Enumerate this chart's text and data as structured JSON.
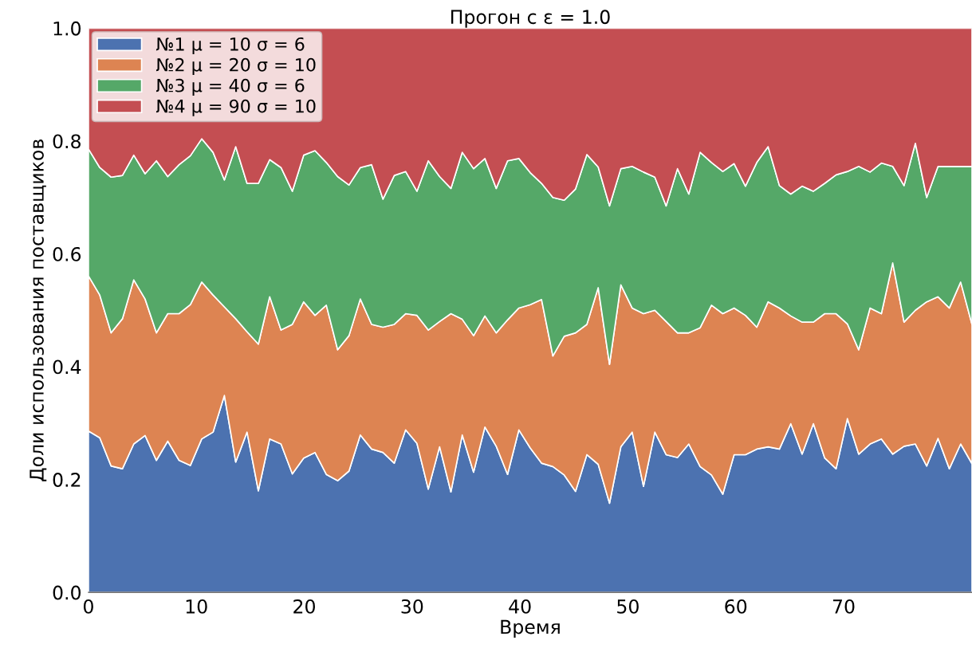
{
  "chart_data": {
    "type": "area",
    "stacked": true,
    "title": "Прогон с ε = 1.0",
    "xlabel": "Время",
    "ylabel": "Доли использования поставщиков",
    "x": [
      0,
      1.05,
      2.1,
      3.15,
      4.2,
      5.25,
      6.3,
      7.35,
      8.4,
      9.45,
      10.5,
      11.55,
      12.6,
      13.65,
      14.7,
      15.75,
      16.8,
      17.85,
      18.9,
      19.95,
      21,
      22.05,
      23.1,
      24.15,
      25.2,
      26.25,
      27.3,
      28.35,
      29.4,
      30.45,
      31.5,
      32.55,
      33.6,
      34.65,
      35.7,
      36.75,
      37.8,
      38.85,
      39.9,
      40.95,
      42,
      43.05,
      44.1,
      45.15,
      46.2,
      47.25,
      48.3,
      49.35,
      50.4,
      51.45,
      52.5,
      53.55,
      54.6,
      55.65,
      56.7,
      57.75,
      58.8,
      59.85,
      60.9,
      61.95,
      63,
      64.05,
      65.1,
      66.15,
      67.2,
      68.25,
      69.3,
      70.35,
      71.4,
      72.45,
      73.5,
      74.55,
      75.6,
      76.65,
      77.7,
      78.75,
      79.8,
      80.85,
      81.9
    ],
    "series": [
      {
        "name": "№1 μ = 10 σ = 6",
        "color": "#4c72b0",
        "values": [
          0.286,
          0.274,
          0.224,
          0.219,
          0.263,
          0.278,
          0.234,
          0.268,
          0.234,
          0.225,
          0.272,
          0.284,
          0.349,
          0.231,
          0.284,
          0.18,
          0.272,
          0.263,
          0.21,
          0.238,
          0.248,
          0.209,
          0.198,
          0.215,
          0.279,
          0.254,
          0.248,
          0.229,
          0.288,
          0.264,
          0.183,
          0.258,
          0.178,
          0.279,
          0.213,
          0.293,
          0.259,
          0.209,
          0.288,
          0.256,
          0.229,
          0.223,
          0.208,
          0.179,
          0.244,
          0.227,
          0.158,
          0.258,
          0.284,
          0.188,
          0.284,
          0.244,
          0.239,
          0.263,
          0.223,
          0.208,
          0.174,
          0.244,
          0.244,
          0.254,
          0.258,
          0.254,
          0.299,
          0.245,
          0.299,
          0.238,
          0.219,
          0.308,
          0.245,
          0.263,
          0.272,
          0.245,
          0.259,
          0.263,
          0.224,
          0.273,
          0.219,
          0.263,
          0.228
        ]
      },
      {
        "name": "№2 μ = 20 σ = 10",
        "color": "#dd8452",
        "values": [
          0.275,
          0.253,
          0.236,
          0.266,
          0.291,
          0.242,
          0.226,
          0.226,
          0.26,
          0.285,
          0.278,
          0.243,
          0.157,
          0.254,
          0.178,
          0.26,
          0.252,
          0.202,
          0.265,
          0.277,
          0.243,
          0.3,
          0.232,
          0.24,
          0.241,
          0.221,
          0.222,
          0.246,
          0.206,
          0.227,
          0.282,
          0.222,
          0.316,
          0.205,
          0.242,
          0.197,
          0.201,
          0.274,
          0.216,
          0.254,
          0.29,
          0.196,
          0.246,
          0.281,
          0.231,
          0.313,
          0.246,
          0.287,
          0.22,
          0.306,
          0.216,
          0.236,
          0.221,
          0.197,
          0.246,
          0.301,
          0.32,
          0.26,
          0.247,
          0.216,
          0.257,
          0.25,
          0.191,
          0.234,
          0.18,
          0.256,
          0.275,
          0.168,
          0.185,
          0.241,
          0.222,
          0.339,
          0.22,
          0.237,
          0.291,
          0.251,
          0.285,
          0.287,
          0.247
        ]
      },
      {
        "name": "№3 μ = 40 σ = 6",
        "color": "#55a868",
        "values": [
          0.225,
          0.226,
          0.276,
          0.254,
          0.221,
          0.222,
          0.305,
          0.243,
          0.264,
          0.264,
          0.254,
          0.253,
          0.225,
          0.305,
          0.263,
          0.285,
          0.243,
          0.288,
          0.236,
          0.26,
          0.292,
          0.253,
          0.307,
          0.267,
          0.233,
          0.283,
          0.227,
          0.264,
          0.252,
          0.22,
          0.3,
          0.257,
          0.222,
          0.296,
          0.296,
          0.279,
          0.256,
          0.282,
          0.265,
          0.234,
          0.206,
          0.281,
          0.241,
          0.255,
          0.301,
          0.214,
          0.281,
          0.206,
          0.251,
          0.251,
          0.236,
          0.205,
          0.291,
          0.246,
          0.311,
          0.253,
          0.252,
          0.256,
          0.229,
          0.292,
          0.275,
          0.217,
          0.216,
          0.241,
          0.232,
          0.231,
          0.246,
          0.27,
          0.325,
          0.241,
          0.267,
          0.171,
          0.242,
          0.296,
          0.185,
          0.231,
          0.251,
          0.205,
          0.28
        ]
      },
      {
        "name": "№4 μ = 90 σ = 10",
        "color": "#c44e52",
        "values": [
          0.214,
          0.247,
          0.264,
          0.261,
          0.225,
          0.258,
          0.235,
          0.263,
          0.242,
          0.226,
          0.196,
          0.22,
          0.269,
          0.21,
          0.275,
          0.275,
          0.233,
          0.247,
          0.289,
          0.225,
          0.217,
          0.238,
          0.263,
          0.278,
          0.247,
          0.242,
          0.303,
          0.261,
          0.254,
          0.289,
          0.235,
          0.263,
          0.284,
          0.22,
          0.249,
          0.231,
          0.284,
          0.235,
          0.231,
          0.256,
          0.275,
          0.3,
          0.305,
          0.285,
          0.224,
          0.246,
          0.315,
          0.249,
          0.245,
          0.255,
          0.264,
          0.315,
          0.249,
          0.294,
          0.22,
          0.238,
          0.254,
          0.24,
          0.28,
          0.238,
          0.21,
          0.279,
          0.294,
          0.28,
          0.289,
          0.275,
          0.26,
          0.254,
          0.245,
          0.255,
          0.239,
          0.245,
          0.279,
          0.204,
          0.3,
          0.245,
          0.245,
          0.245,
          0.245
        ]
      }
    ],
    "xlim": [
      0,
      81.9
    ],
    "xticks": [
      0,
      10,
      20,
      30,
      40,
      50,
      60,
      70
    ],
    "ylim": [
      0,
      1.0
    ],
    "yticks": [
      {
        "value": 0,
        "label": "0.0"
      },
      {
        "value": 0.2,
        "label": "0.2"
      },
      {
        "value": 0.4,
        "label": "0.4"
      },
      {
        "value": 0.6,
        "label": "0.6"
      },
      {
        "value": 0.8,
        "label": "0.8"
      },
      {
        "value": 1.0,
        "label": "1.0"
      }
    ],
    "legend": "top left",
    "grid": false
  }
}
